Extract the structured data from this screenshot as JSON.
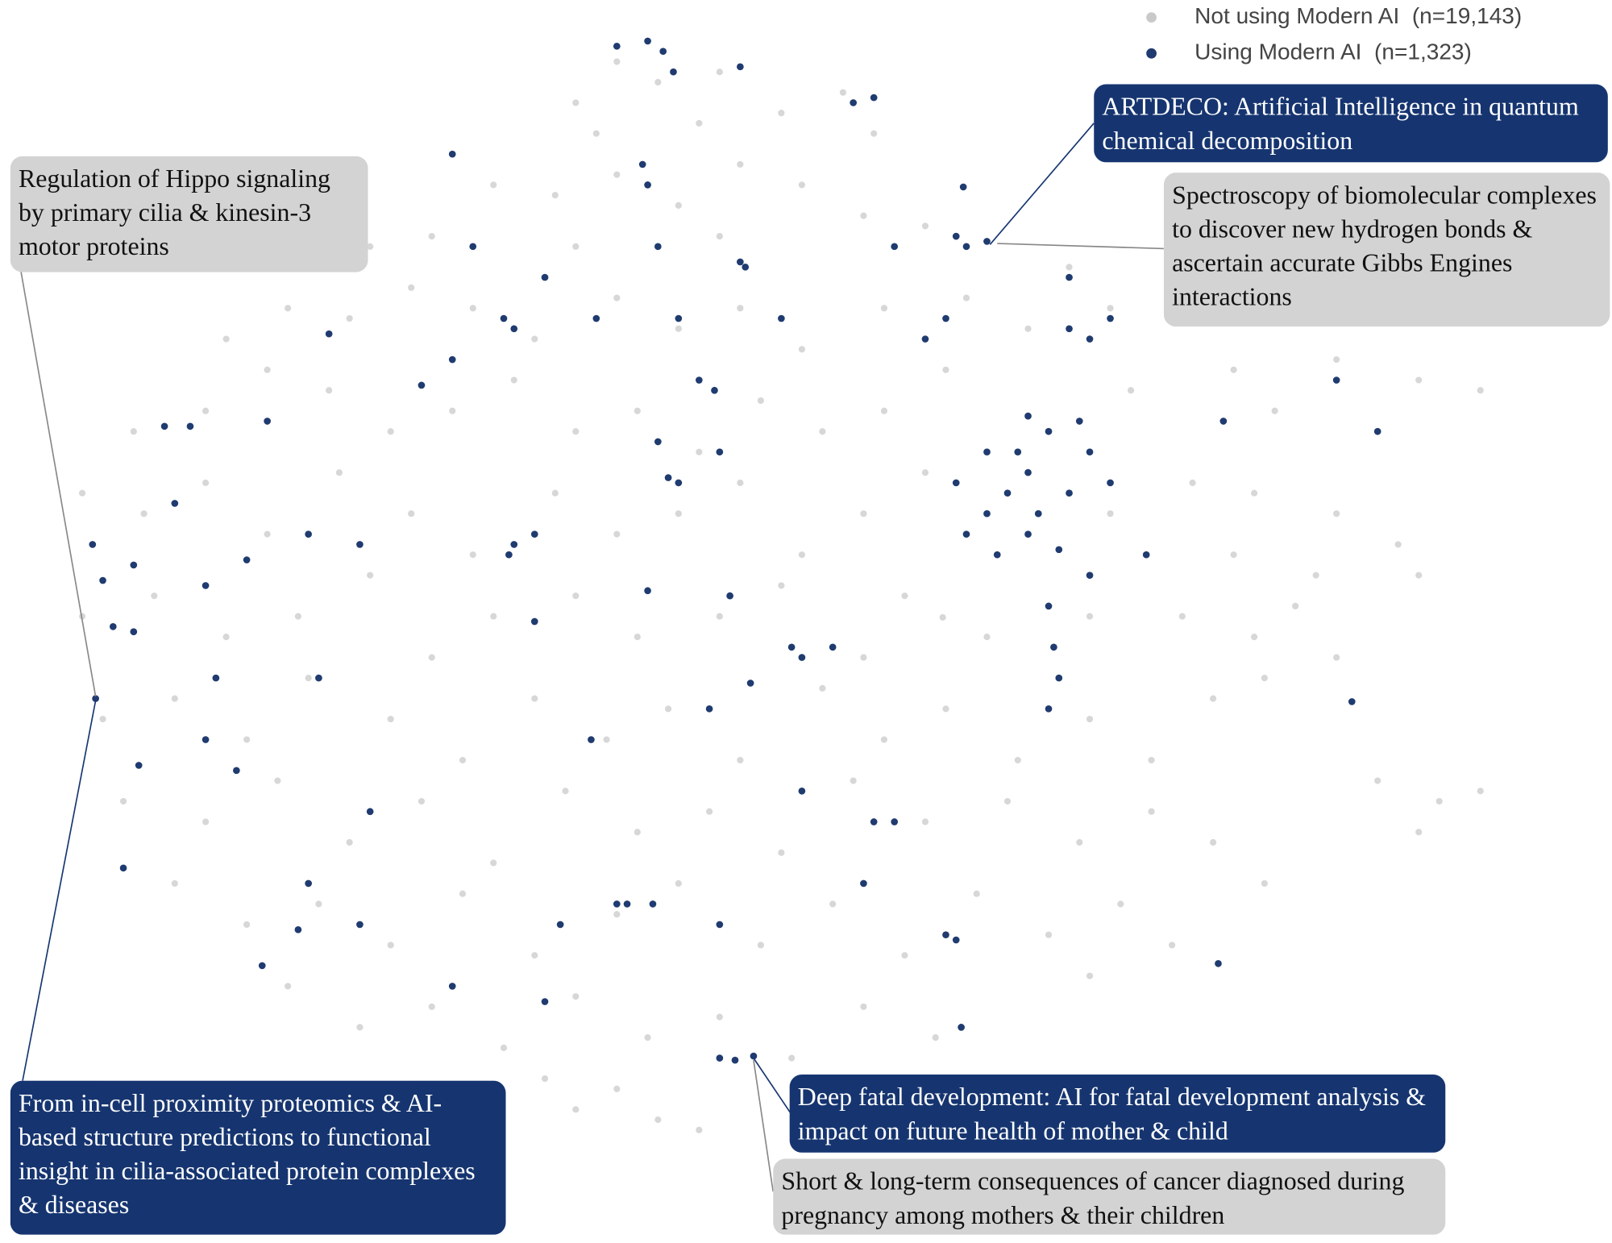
{
  "chart_data": {
    "type": "scatter",
    "xlim": [
      0,
      1568
    ],
    "ylim": [
      1210,
      0
    ],
    "series": [
      {
        "name": "Not using Modern AI  (n=19,143)",
        "color": "#c9c9c9",
        "x": [
          600,
          640,
          560,
          700,
          760,
          820,
          850,
          580,
          680,
          480,
          540,
          600,
          660,
          720,
          780,
          840,
          900,
          420,
          360,
          700,
          560,
          280,
          340,
          220,
          400,
          460,
          520,
          600,
          660,
          720,
          780,
          860,
          940,
          1000,
          1080,
          1040,
          130,
          200,
          260,
          320,
          380,
          440,
          500,
          560,
          620,
          680,
          740,
          800,
          860,
          920,
          1100,
          1200,
          1300,
          1380,
          1440,
          1240,
          80,
          140,
          200,
          260,
          330,
          400,
          460,
          540,
          600,
          660,
          720,
          780,
          840,
          900,
          1080,
          1160,
          1220,
          1300,
          1360,
          1200,
          1280,
          80,
          150,
          220,
          290,
          360,
          420,
          480,
          560,
          620,
          700,
          760,
          840,
          880,
          960,
          1060,
          1150,
          1220,
          1300,
          1380,
          1260,
          100,
          170,
          240,
          300,
          380,
          450,
          520,
          590,
          650,
          720,
          800,
          860,
          920,
          990,
          1060,
          1120,
          1180,
          1230,
          120,
          200,
          270,
          340,
          410,
          480,
          550,
          620,
          690,
          760,
          830,
          900,
          980,
          1050,
          1120,
          1180,
          1340,
          1400,
          1440,
          1380,
          170,
          240,
          310,
          380,
          450,
          520,
          600,
          660,
          740,
          810,
          880,
          950,
          1020,
          1090,
          1140,
          1230,
          280,
          350,
          420,
          490,
          560,
          630,
          700,
          770,
          840,
          910,
          1060,
          530,
          600,
          640,
          680,
          560,
          917
        ],
        "y": [
          60,
          80,
          100,
          70,
          110,
          90,
          130,
          130,
          120,
          180,
          190,
          170,
          200,
          160,
          180,
          210,
          220,
          230,
          240,
          230,
          240,
          300,
          310,
          330,
          280,
          300,
          330,
          290,
          320,
          300,
          340,
          300,
          290,
          320,
          300,
          260,
          420,
          400,
          360,
          380,
          420,
          400,
          370,
          420,
          400,
          440,
          390,
          420,
          400,
          360,
          380,
          360,
          350,
          370,
          380,
          400,
          480,
          500,
          470,
          520,
          460,
          500,
          540,
          480,
          520,
          500,
          470,
          540,
          500,
          460,
          500,
          470,
          480,
          500,
          530,
          540,
          560,
          600,
          580,
          620,
          600,
          560,
          640,
          600,
          580,
          620,
          600,
          570,
          640,
          580,
          620,
          600,
          600,
          620,
          640,
          560,
          590,
          700,
          680,
          720,
          660,
          700,
          740,
          680,
          720,
          690,
          740,
          670,
          720,
          690,
          740,
          700,
          740,
          680,
          660,
          780,
          800,
          760,
          820,
          780,
          840,
          770,
          810,
          790,
          830,
          760,
          800,
          780,
          820,
          790,
          820,
          760,
          780,
          770,
          810,
          860,
          900,
          880,
          920,
          870,
          930,
          890,
          860,
          920,
          880,
          930,
          870,
          910,
          880,
          920,
          860,
          960,
          1000,
          980,
          1020,
          970,
          1010,
          990,
          1030,
          980,
          1010,
          950,
          1050,
          1060,
          1090,
          1100,
          1080,
          601
        ]
      },
      {
        "name": "Using Modern AI  (n=1,323)",
        "color": "#1f3b70",
        "x": [
          600,
          630,
          645,
          655,
          720,
          830,
          850,
          625,
          630,
          440,
          460,
          530,
          500,
          490,
          580,
          720,
          725,
          640,
          760,
          660,
          870,
          930,
          940,
          960,
          937,
          920,
          900,
          1040,
          1060,
          1080,
          1040,
          320,
          440,
          410,
          260,
          160,
          185,
          680,
          695,
          650,
          660,
          700,
          640,
          520,
          500,
          495,
          350,
          170,
          90,
          100,
          130,
          110,
          130,
          200,
          240,
          300,
          210,
          310,
          200,
          230,
          135,
          93,
          520,
          630,
          770,
          780,
          810,
          710,
          730,
          690,
          960,
          1000,
          1020,
          1060,
          1000,
          980,
          1010,
          1040,
          960,
          940,
          970,
          1000,
          1030,
          1080,
          1050,
          990,
          930,
          1020,
          1025,
          1030,
          1020,
          1060,
          1115,
          1190,
          1300,
          1340,
          1315,
          575,
          870,
          850,
          780,
          700,
          600,
          610,
          635,
          545,
          920,
          930,
          290,
          255,
          350,
          440,
          530,
          700,
          715,
          733,
          935,
          1185,
          840,
          360,
          300,
          120
        ],
        "y": [
          45,
          40,
          50,
          70,
          65,
          100,
          95,
          160,
          180,
          150,
          240,
          270,
          320,
          310,
          310,
          255,
          260,
          240,
          310,
          310,
          240,
          230,
          240,
          235,
          182,
          310,
          330,
          320,
          330,
          310,
          270,
          325,
          350,
          375,
          410,
          415,
          415,
          370,
          380,
          465,
          470,
          440,
          430,
          520,
          530,
          540,
          530,
          490,
          530,
          565,
          550,
          610,
          615,
          570,
          545,
          520,
          660,
          660,
          720,
          750,
          745,
          680,
          605,
          575,
          630,
          640,
          630,
          580,
          665,
          690,
          440,
          405,
          420,
          440,
          460,
          480,
          500,
          480,
          500,
          520,
          540,
          520,
          535,
          470,
          410,
          440,
          470,
          590,
          630,
          660,
          690,
          560,
          540,
          410,
          370,
          420,
          683,
          720,
          800,
          800,
          770,
          900,
          880,
          880,
          880,
          900,
          910,
          915,
          905,
          940,
          900,
          960,
          975,
          1030,
          1032,
          1028,
          1000,
          938,
          860,
          790,
          860,
          845
        ]
      }
    ],
    "annotations": [
      {
        "text": "Regulation of Hippo signaling by primary cilia & kinesin-3 motor proteins",
        "style": "light"
      },
      {
        "text": "ARTDECO: Artificial Intelligence in quantum chemical decomposition",
        "style": "dark"
      },
      {
        "text": "Spectroscopy of biomolecular complexes to discover new hydrogen bonds & ascertain accurate Gibbs Engines interactions",
        "style": "light"
      },
      {
        "text": "From in-cell proximity proteomics & AI-based structure predictions to functional insight in cilia-associated protein complexes & diseases",
        "style": "dark"
      },
      {
        "text": "Deep fatal development: AI for fatal development analysis & impact on future health of mother & child",
        "style": "dark"
      },
      {
        "text": "Short & long-term consequences of cancer diagnosed during pregnancy among mothers & their children",
        "style": "light"
      }
    ]
  }
}
